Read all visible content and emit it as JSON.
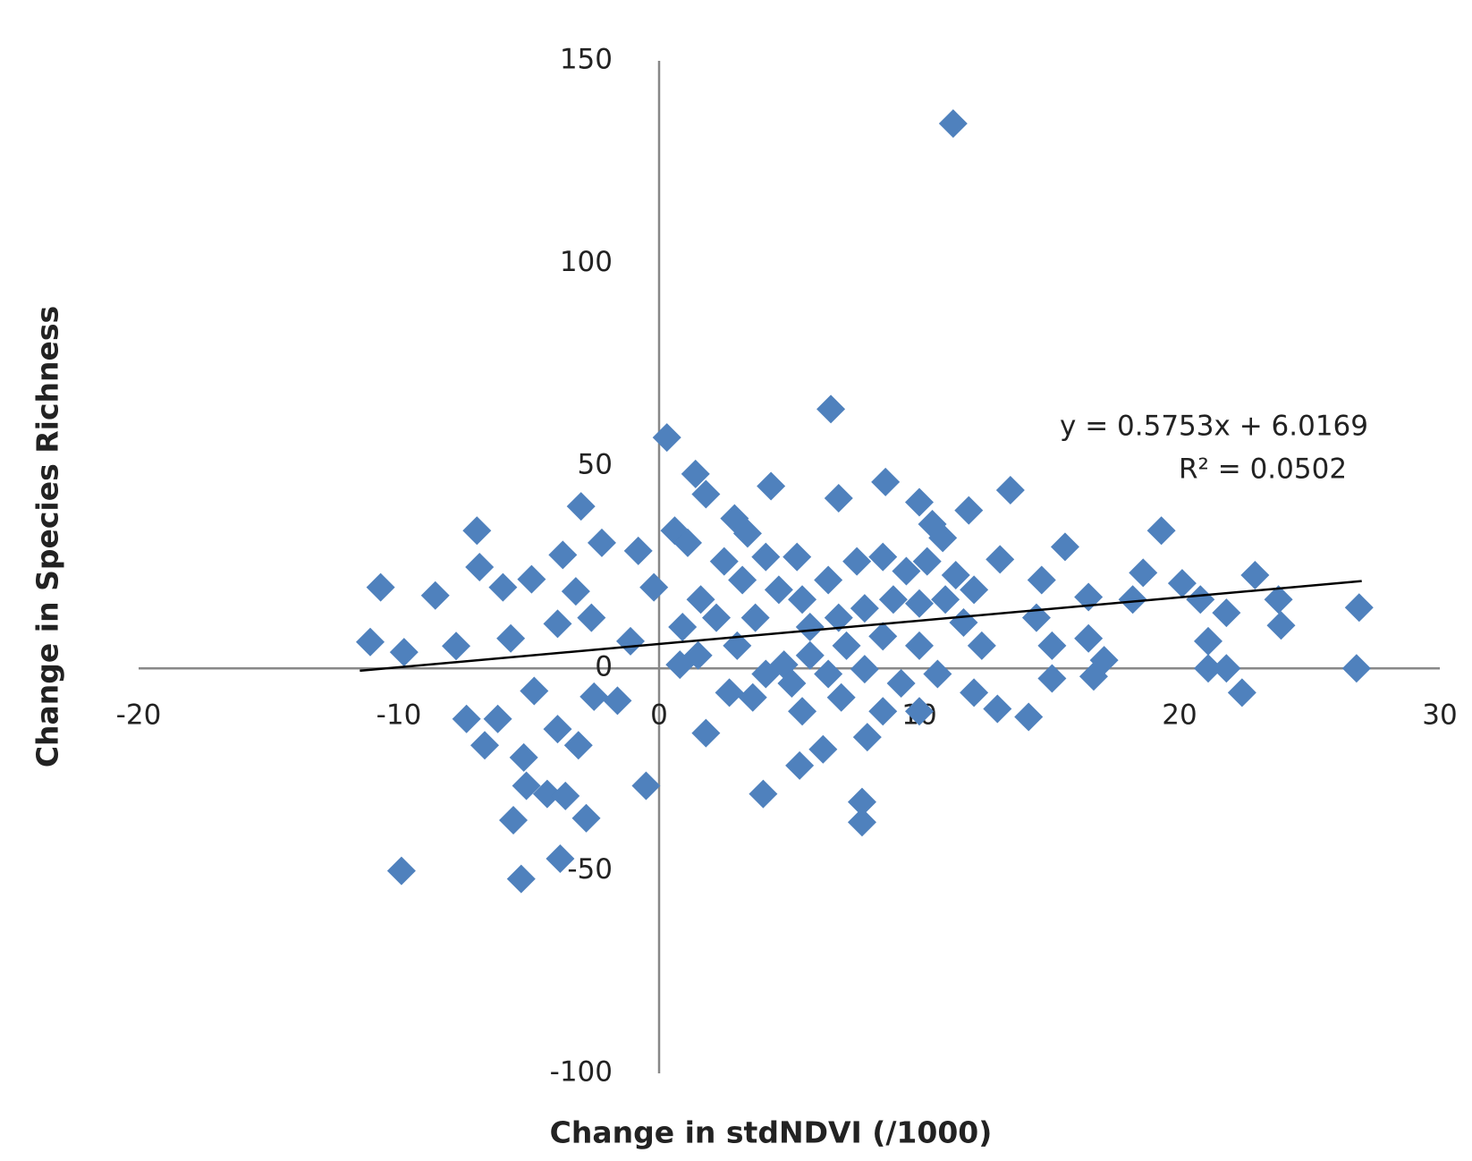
{
  "chart_data": {
    "type": "scatter",
    "x_label": "Change in stdNDVI (/1000)",
    "y_label": "Change in Species Richness",
    "xlim": [
      -20,
      30
    ],
    "xticks": [
      -20,
      -10,
      0,
      10,
      20,
      30
    ],
    "ylim": [
      -100,
      150
    ],
    "yticks": [
      -100,
      -50,
      0,
      50,
      100,
      150
    ],
    "marker": "diamond",
    "series": [
      {
        "color": "#4f81bd",
        "x": [
          11.3,
          6.6,
          0.3,
          8.7,
          13.5,
          4.3,
          1.4,
          1.8,
          -3,
          -7,
          19.3,
          15.6,
          -2.2,
          -3.7,
          -0.8,
          0.6,
          2.9,
          6.9,
          10,
          11.9,
          -10.7,
          -8.6,
          -6.9,
          -6,
          -4.9,
          -3.2,
          -11.1,
          -9.8,
          -7.8,
          -5.7,
          -3.9,
          -2.6,
          -1.1,
          -0.2,
          -7.4,
          -6.2,
          -6.7,
          -5.2,
          -3.9,
          -3.1,
          -5.1,
          -4.3,
          -3.6,
          -5.6,
          -2.8,
          -3.8,
          -9.9,
          -5.3,
          -0.5,
          4,
          7.8,
          7.8,
          5.4,
          6.3,
          8,
          1.8,
          2.7,
          -1.6,
          -2.5,
          -4.8,
          13,
          14.2,
          15.1,
          16.7,
          17.1,
          21.1,
          21.8,
          22.4,
          26.8,
          26.9,
          23.9,
          23.8,
          22.9,
          21.8,
          21.1,
          20.8,
          20.1,
          18.6,
          18.2,
          16.5,
          16.5,
          14.7,
          14.5,
          15.1,
          13.1,
          5.5,
          6.5,
          7.6,
          8.6,
          9.5,
          10.3,
          11.4,
          12.1,
          5.8,
          6.9,
          7.9,
          9,
          10,
          11,
          11.7,
          12.4,
          10,
          8.6,
          7.2,
          5.8,
          4.8,
          5.1,
          6.5,
          7.9,
          9.3,
          10.7,
          12.1,
          10,
          8.6,
          7,
          5.5,
          4.1,
          3.6,
          3,
          3.7,
          4.6,
          3.2,
          4.1,
          2.5,
          1.6,
          0.9,
          0.8,
          1.5,
          2.2,
          1.1,
          3.4,
          5.3,
          10.5,
          10.9
        ],
        "y": [
          134.5,
          64,
          57,
          46,
          44,
          45,
          48,
          43,
          40,
          34,
          34,
          30,
          31,
          28,
          29,
          34,
          37,
          42,
          41,
          39,
          20,
          18,
          25,
          20,
          22,
          19,
          6.5,
          4,
          5.5,
          7.4,
          11,
          12.5,
          6.7,
          20,
          -12.5,
          -12.5,
          -19,
          -22,
          -15,
          -19,
          -29,
          -31,
          -31.5,
          -37.5,
          -37,
          -47,
          -50,
          -52,
          -29,
          -31,
          -33,
          -38,
          -24,
          -20,
          -17,
          -16,
          -6,
          -8,
          -7,
          -5.6,
          -10,
          -12,
          -2.5,
          -2,
          2,
          0,
          0,
          -6,
          0,
          15,
          10.6,
          17,
          23,
          13.7,
          6.7,
          17,
          21,
          23.6,
          17,
          17.6,
          7.4,
          21.8,
          12.5,
          5.6,
          26.9,
          17,
          21.8,
          26.4,
          27.5,
          24,
          26.4,
          23,
          19.4,
          10.2,
          12.5,
          14.8,
          17,
          16,
          17,
          11.3,
          5.6,
          5.6,
          7.9,
          5.6,
          3.2,
          0.9,
          -3.7,
          -1.4,
          -0.2,
          -3.7,
          -1.4,
          -6,
          -10.6,
          -10.6,
          -7.2,
          -10.6,
          -1.4,
          -7.2,
          5.6,
          12.5,
          19.4,
          21.8,
          27.5,
          26.4,
          17,
          10.2,
          0.9,
          3.2,
          12.5,
          31,
          33.3,
          27.5,
          35.6,
          32.2
        ]
      }
    ],
    "trendline": {
      "slope": 0.5753,
      "intercept": 6.0169,
      "x_range": [
        -11.5,
        27
      ],
      "equation": "y = 0.5753x + 6.0169",
      "r_squared": "R² = 0.0502"
    }
  }
}
